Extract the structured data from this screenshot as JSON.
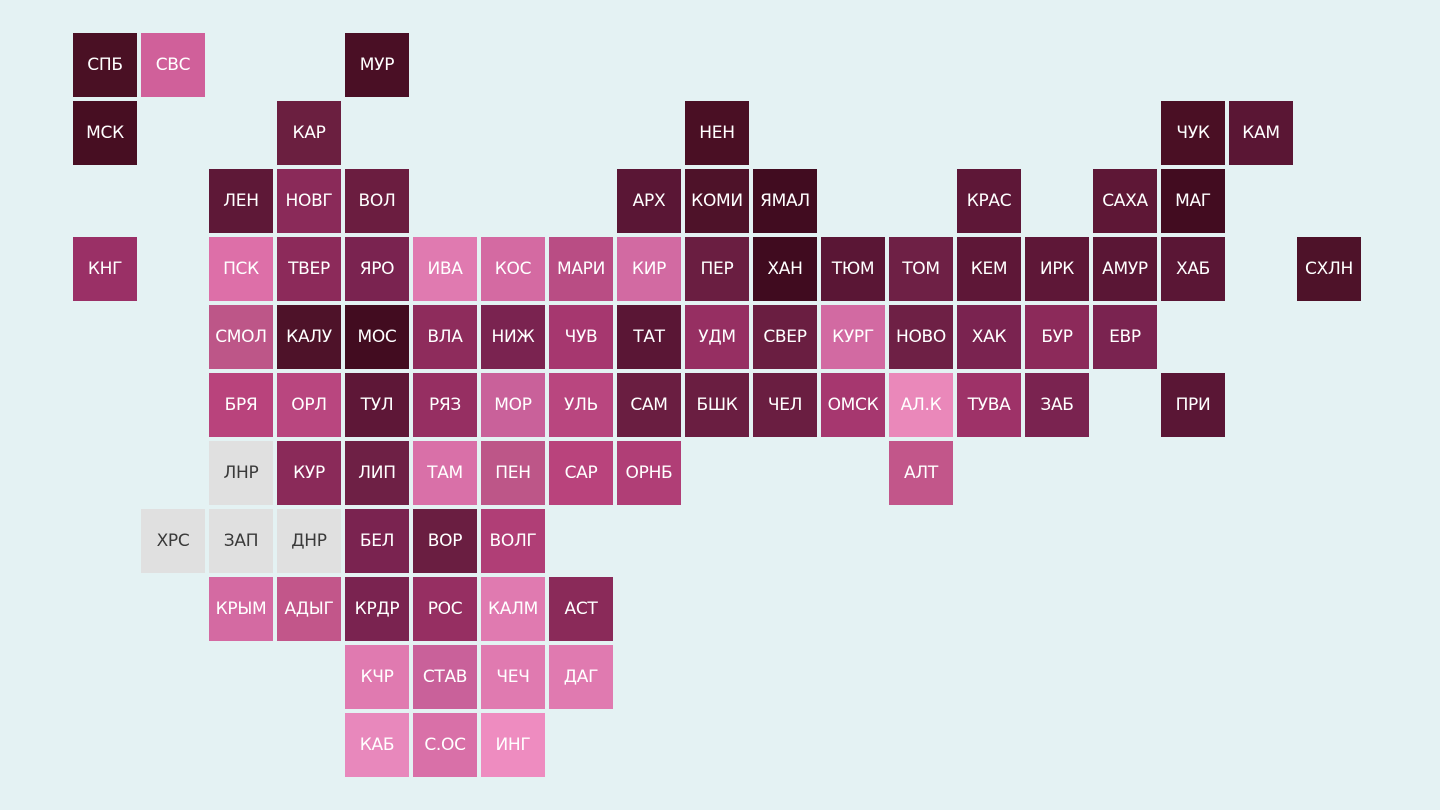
{
  "tiles": [
    {
      "label": "СПБ",
      "color": "#4a1024"
    },
    {
      "label": "СВС",
      "color": "#d0609a"
    },
    {
      "label": "МУР",
      "color": "#4a0f25"
    },
    {
      "label": "МСК",
      "color": "#470e22"
    },
    {
      "label": "КАР",
      "color": "#6b1f40"
    },
    {
      "label": "НЕН",
      "color": "#4a0f24"
    },
    {
      "label": "ЧУК",
      "color": "#4a0f24"
    },
    {
      "label": "КАМ",
      "color": "#5a1634"
    },
    {
      "label": "ЛЕН",
      "color": "#5e1837"
    },
    {
      "label": "НОВГ",
      "color": "#8a2a59"
    },
    {
      "label": "ВОЛ",
      "color": "#6b1d40"
    },
    {
      "label": "АРХ",
      "color": "#5a1635"
    },
    {
      "label": "КОМИ",
      "color": "#4e1229"
    },
    {
      "label": "ЯМАЛ",
      "color": "#410c20"
    },
    {
      "label": "КРАС",
      "color": "#5e1737"
    },
    {
      "label": "САХА",
      "color": "#5e1736"
    },
    {
      "label": "МАГ",
      "color": "#420c20"
    },
    {
      "label": "КНГ",
      "color": "#9a3066"
    },
    {
      "label": "ПСК",
      "color": "#dd6fa8"
    },
    {
      "label": "ТВЕР",
      "color": "#8c2a5a"
    },
    {
      "label": "ЯРО",
      "color": "#7a2350"
    },
    {
      "label": "ИВА",
      "color": "#e07ab0"
    },
    {
      "label": "КОС",
      "color": "#d46aa2"
    },
    {
      "label": "МАРИ",
      "color": "#b94d84"
    },
    {
      "label": "КИР",
      "color": "#d26aa2"
    },
    {
      "label": "ПЕР",
      "color": "#6a1e41"
    },
    {
      "label": "ХАН",
      "color": "#400b1f"
    },
    {
      "label": "ТЮМ",
      "color": "#5a1635"
    },
    {
      "label": "ТОМ",
      "color": "#6e2045"
    },
    {
      "label": "КЕМ",
      "color": "#5e1737"
    },
    {
      "label": "ИРК",
      "color": "#5e1737"
    },
    {
      "label": "АМУР",
      "color": "#5a1635"
    },
    {
      "label": "ХАБ",
      "color": "#5a1635"
    },
    {
      "label": "СХЛН",
      "color": "#4e1229"
    },
    {
      "label": "СМОЛ",
      "color": "#bd5688"
    },
    {
      "label": "КАЛУ",
      "color": "#4e1229"
    },
    {
      "label": "МОС",
      "color": "#420c20"
    },
    {
      "label": "ВЛА",
      "color": "#8e2c5c"
    },
    {
      "label": "НИЖ",
      "color": "#7a2350"
    },
    {
      "label": "ЧУВ",
      "color": "#a6376f"
    },
    {
      "label": "ТАТ",
      "color": "#5a1635"
    },
    {
      "label": "УДМ",
      "color": "#962f62"
    },
    {
      "label": "СВЕР",
      "color": "#6a1e41"
    },
    {
      "label": "КУРГ",
      "color": "#d26aa2"
    },
    {
      "label": "НОВО",
      "color": "#6e2045"
    },
    {
      "label": "ХАК",
      "color": "#7a2350"
    },
    {
      "label": "БУР",
      "color": "#8c2a5a"
    },
    {
      "label": "ЕВР",
      "color": "#7a2350"
    },
    {
      "label": "БРЯ",
      "color": "#b9437c"
    },
    {
      "label": "ОРЛ",
      "color": "#b9467f"
    },
    {
      "label": "ТУЛ",
      "color": "#5e1737"
    },
    {
      "label": "РЯЗ",
      "color": "#962f62"
    },
    {
      "label": "МОР",
      "color": "#c9619a"
    },
    {
      "label": "УЛЬ",
      "color": "#b9467f"
    },
    {
      "label": "САМ",
      "color": "#6a1e41"
    },
    {
      "label": "БШК",
      "color": "#6a1e41"
    },
    {
      "label": "ЧЕЛ",
      "color": "#6a1e41"
    },
    {
      "label": "ОМСК",
      "color": "#a6376f"
    },
    {
      "label": "АЛ.К",
      "color": "#ea88ba"
    },
    {
      "label": "ТУВА",
      "color": "#9e3268"
    },
    {
      "label": "ЗАБ",
      "color": "#7a2350"
    },
    {
      "label": "ПРИ",
      "color": "#5a1635"
    },
    {
      "label": "ЛНР",
      "color": "#e0e0e0"
    },
    {
      "label": "КУР",
      "color": "#8a2a59"
    },
    {
      "label": "ЛИП",
      "color": "#6e2045"
    },
    {
      "label": "ТАМ",
      "color": "#d970a8"
    },
    {
      "label": "ПЕН",
      "color": "#bd5688"
    },
    {
      "label": "САР",
      "color": "#b9437c"
    },
    {
      "label": "ОРНБ",
      "color": "#b03e76"
    },
    {
      "label": "АЛТ",
      "color": "#c2568a"
    },
    {
      "label": "ХРС",
      "color": "#e0e0e0"
    },
    {
      "label": "ЗАП",
      "color": "#e0e0e0"
    },
    {
      "label": "ДНР",
      "color": "#e0e0e0"
    },
    {
      "label": "БЕЛ",
      "color": "#7a2350"
    },
    {
      "label": "ВОР",
      "color": "#6a1e41"
    },
    {
      "label": "ВОЛГ",
      "color": "#b03e76"
    },
    {
      "label": "КРЫМ",
      "color": "#d46aa2"
    },
    {
      "label": "АДЫГ",
      "color": "#c2568a"
    },
    {
      "label": "КРДР",
      "color": "#7a2350"
    },
    {
      "label": "РОС",
      "color": "#962f62"
    },
    {
      "label": "КАЛМ",
      "color": "#e07ab0"
    },
    {
      "label": "АСТ",
      "color": "#8a2a59"
    },
    {
      "label": "КЧР",
      "color": "#e07ab0"
    },
    {
      "label": "СТАВ",
      "color": "#c9619a"
    },
    {
      "label": "ЧЕЧ",
      "color": "#e07ab0"
    },
    {
      "label": "ДАГ",
      "color": "#e07ab0"
    },
    {
      "label": "КАБ",
      "color": "#e888bc"
    },
    {
      "label": "С.ОС",
      "color": "#d970a8"
    },
    {
      "label": "ИНГ",
      "color": "#ee8cc0"
    }
  ]
}
